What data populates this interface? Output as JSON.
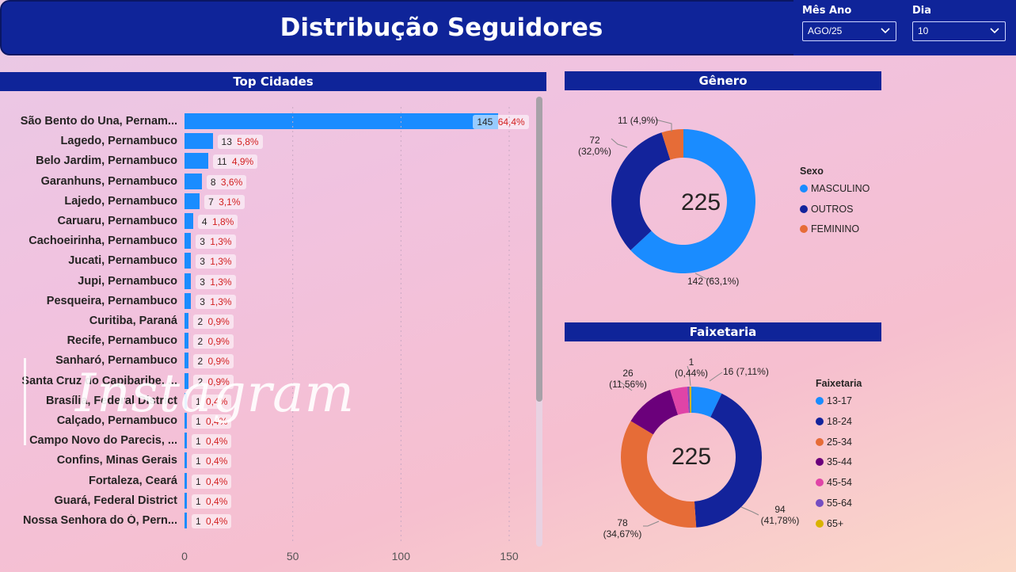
{
  "header": {
    "title": "Distribução Seguidores"
  },
  "filters": [
    {
      "label": "Mês Ano",
      "value": "AGO/25"
    },
    {
      "label": "Dia",
      "value": "10"
    }
  ],
  "watermark": "Instagram",
  "colors": {
    "bar": "#1a8cff",
    "header": "#0f2499",
    "pct_text": "#d21f1f"
  },
  "chart_data": [
    {
      "type": "bar",
      "title": "Top Cidades",
      "orientation": "horizontal",
      "categories": [
        "São Bento do Una, Pernam...",
        "Lagedo, Pernambuco",
        "Belo Jardim, Pernambuco",
        "Garanhuns, Pernambuco",
        "Lajedo, Pernambuco",
        "Caruaru, Pernambuco",
        "Cachoeirinha, Pernambuco",
        "Jucati, Pernambuco",
        "Jupi, Pernambuco",
        "Pesqueira, Pernambuco",
        "Curitiba, Paraná",
        "Recife, Pernambuco",
        "Sanharó, Pernambuco",
        "Santa Cruz do Capibaribe, ...",
        "Brasília, Federal District",
        "Calçado, Pernambuco",
        "Campo Novo do Parecis, ...",
        "Confins, Minas Gerais",
        "Fortaleza, Ceará",
        "Guará, Federal District",
        "Nossa Senhora do Ó, Pern..."
      ],
      "values": [
        145,
        13,
        11,
        8,
        7,
        4,
        3,
        3,
        3,
        3,
        2,
        2,
        2,
        2,
        1,
        1,
        1,
        1,
        1,
        1,
        1
      ],
      "percent_labels": [
        "64,4%",
        "5,8%",
        "4,9%",
        "3,6%",
        "3,1%",
        "1,8%",
        "1,3%",
        "1,3%",
        "1,3%",
        "1,3%",
        "0,9%",
        "0,9%",
        "0,9%",
        "0,9%",
        "0,4%",
        "0,4%",
        "0,4%",
        "0,4%",
        "0,4%",
        "0,4%",
        "0,4%"
      ],
      "xlim": [
        0,
        150
      ],
      "xticks": [
        "0",
        "50",
        "100",
        "150"
      ]
    },
    {
      "type": "pie",
      "donut": true,
      "title": "Gênero",
      "legend_title": "Sexo",
      "total_label": "225",
      "slices": [
        {
          "name": "MASCULINO",
          "value": 142,
          "label": "142 (63,1%)",
          "color": "#1a8cff"
        },
        {
          "name": "OUTROS",
          "value": 72,
          "label": "72 (32,0%)",
          "color": "#13239b"
        },
        {
          "name": "FEMININO",
          "value": 11,
          "label": "11 (4,9%)",
          "color": "#e66c37"
        }
      ]
    },
    {
      "type": "pie",
      "donut": true,
      "title": "Faixetaria",
      "legend_title": "Faixetaria",
      "total_label": "225",
      "slices": [
        {
          "name": "13-17",
          "value": 16,
          "label": "16 (7,11%)",
          "color": "#1a8cff"
        },
        {
          "name": "18-24",
          "value": 94,
          "label": "94 (41,78%)",
          "color": "#13239b"
        },
        {
          "name": "25-34",
          "value": 78,
          "label": "78 (34,67%)",
          "color": "#e66c37"
        },
        {
          "name": "35-44",
          "value": 26,
          "label": "26 (11,56%)",
          "color": "#6b007b"
        },
        {
          "name": "45-54",
          "value": 9,
          "label": "",
          "color": "#e044a7"
        },
        {
          "name": "55-64",
          "value": 1,
          "label": "1 (0,44%)",
          "color": "#744ec2"
        },
        {
          "name": "65+",
          "value": 1,
          "label": "",
          "color": "#d9b300"
        }
      ]
    }
  ]
}
